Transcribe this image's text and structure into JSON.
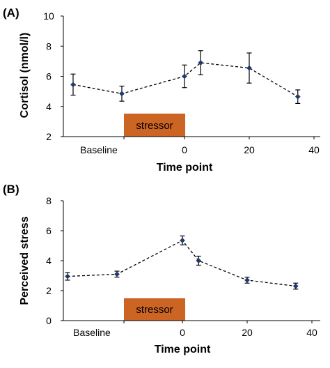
{
  "chart_data": [
    {
      "type": "line",
      "panel_label": "(A)",
      "xlabel": "Time point",
      "ylabel": "Cortisol (nmol/l)",
      "ylim": [
        2,
        10
      ],
      "yticks": [
        "2",
        "4",
        "6",
        "8",
        "10"
      ],
      "xticks": [
        "Baseline",
        "0",
        "20",
        "40"
      ],
      "stressor_label": "stressor",
      "stressor_color": "#cc6424",
      "line_style": "dashed",
      "marker_color": "#1f3a6e",
      "grid": false,
      "points": [
        {
          "x": "Baseline",
          "y": 5.45,
          "err": 0.7
        },
        {
          "x": "Baseline",
          "y": 4.85,
          "err": 0.5
        },
        {
          "x": 0,
          "y": 6.0,
          "err": 0.75
        },
        {
          "x": 5,
          "y": 6.9,
          "err": 0.8
        },
        {
          "x": 20,
          "y": 6.55,
          "err": 1.0
        },
        {
          "x": 35,
          "y": 4.65,
          "err": 0.45
        }
      ]
    },
    {
      "type": "line",
      "panel_label": "(B)",
      "xlabel": "Time point",
      "ylabel": "Perceived stress",
      "ylim": [
        0,
        8
      ],
      "yticks": [
        "0",
        "2",
        "4",
        "6",
        "8"
      ],
      "xticks": [
        "Baseline",
        "0",
        "20",
        "40"
      ],
      "stressor_label": "stressor",
      "stressor_color": "#cc6424",
      "line_style": "dashed",
      "marker_color": "#1f3a6e",
      "grid": false,
      "points": [
        {
          "x": "Baseline",
          "y": 2.95,
          "err": 0.25
        },
        {
          "x": "Baseline",
          "y": 3.1,
          "err": 0.2
        },
        {
          "x": 0,
          "y": 5.35,
          "err": 0.3
        },
        {
          "x": 5,
          "y": 4.0,
          "err": 0.3
        },
        {
          "x": 20,
          "y": 2.7,
          "err": 0.2
        },
        {
          "x": 35,
          "y": 2.3,
          "err": 0.2
        }
      ]
    }
  ]
}
